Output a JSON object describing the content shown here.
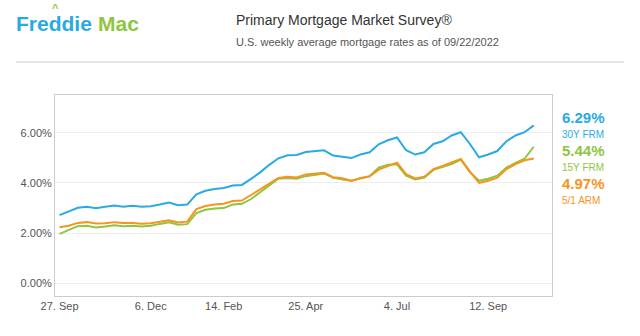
{
  "chart_data": {
    "type": "line",
    "title": "Primary Mortgage Market Survey®",
    "subtitle": "U.S. weekly average mortgage rates as of 09/22/2022",
    "annotations": [
      {
        "text": "Freddie",
        "color": "#29abe2"
      },
      {
        "text": "Mac",
        "color": "#8dc63f"
      },
      {
        "text": "^",
        "color": "#8dc63f"
      }
    ],
    "x": [
      0,
      1,
      2,
      3,
      4,
      5,
      6,
      7,
      8,
      9,
      10,
      11,
      12,
      13,
      14,
      15,
      16,
      17,
      18,
      19,
      20,
      21,
      22,
      23,
      24,
      25,
      26,
      27,
      28,
      29,
      30,
      31,
      32,
      33,
      34,
      35,
      36,
      37,
      38,
      39,
      40,
      41,
      42,
      43,
      44,
      45,
      46,
      47,
      48,
      49,
      50,
      51,
      52
    ],
    "series": [
      {
        "name": "30Y FRM",
        "color": "#29abe2",
        "values": [
          2.72,
          2.88,
          3.01,
          3.05,
          2.99,
          3.05,
          3.1,
          3.05,
          3.09,
          3.05,
          3.07,
          3.14,
          3.22,
          3.11,
          3.14,
          3.55,
          3.69,
          3.76,
          3.8,
          3.9,
          3.92,
          4.16,
          4.42,
          4.72,
          4.98,
          5.1,
          5.11,
          5.23,
          5.27,
          5.3,
          5.09,
          5.05,
          4.99,
          5.13,
          5.22,
          5.54,
          5.7,
          5.81,
          5.3,
          5.13,
          5.22,
          5.55,
          5.66,
          5.89,
          6.02,
          5.55,
          5.02,
          5.13,
          5.27,
          5.66,
          5.89,
          6.02,
          6.29
        ],
        "value_labels": [
          null,
          null,
          null,
          null,
          null,
          null,
          null,
          null,
          null,
          null,
          null,
          null,
          null,
          null,
          null,
          null,
          null,
          null,
          null,
          null,
          null,
          null,
          null,
          null,
          null,
          null,
          null,
          null,
          null,
          null,
          null,
          null,
          null,
          null,
          null,
          null,
          null,
          null,
          null,
          null,
          null,
          null,
          null,
          null,
          null,
          null,
          null,
          null,
          null,
          null,
          null,
          null,
          "6.29%"
        ]
      },
      {
        "name": "15Y FRM",
        "color": "#8dc63f",
        "values": [
          1.97,
          2.12,
          2.28,
          2.3,
          2.23,
          2.27,
          2.32,
          2.28,
          2.3,
          2.27,
          2.3,
          2.37,
          2.43,
          2.34,
          2.36,
          2.8,
          2.93,
          2.98,
          3.0,
          3.14,
          3.17,
          3.36,
          3.63,
          3.91,
          4.17,
          4.2,
          4.17,
          4.27,
          4.33,
          4.38,
          4.2,
          4.15,
          4.08,
          4.2,
          4.27,
          4.61,
          4.72,
          4.74,
          4.29,
          4.14,
          4.21,
          4.52,
          4.62,
          4.75,
          4.93,
          4.43,
          4.09,
          4.17,
          4.29,
          4.61,
          4.8,
          4.97,
          5.44
        ],
        "value_labels": [
          null,
          null,
          null,
          null,
          null,
          null,
          null,
          null,
          null,
          null,
          null,
          null,
          null,
          null,
          null,
          null,
          null,
          null,
          null,
          null,
          null,
          null,
          null,
          null,
          null,
          null,
          null,
          null,
          null,
          null,
          null,
          null,
          null,
          null,
          null,
          null,
          null,
          null,
          null,
          null,
          null,
          null,
          null,
          null,
          null,
          null,
          null,
          null,
          null,
          null,
          null,
          null,
          "5.44%"
        ]
      },
      {
        "name": "5/1 ARM",
        "color": "#f7941d",
        "values": [
          2.24,
          2.3,
          2.41,
          2.44,
          2.39,
          2.4,
          2.44,
          2.41,
          2.41,
          2.38,
          2.4,
          2.47,
          2.51,
          2.43,
          2.46,
          2.96,
          3.08,
          3.14,
          3.17,
          3.28,
          3.3,
          3.52,
          3.74,
          3.98,
          4.2,
          4.25,
          4.22,
          4.34,
          4.36,
          4.4,
          4.23,
          4.19,
          4.09,
          4.17,
          4.26,
          4.53,
          4.68,
          4.81,
          4.35,
          4.18,
          4.25,
          4.55,
          4.68,
          4.81,
          4.95,
          4.45,
          4.0,
          4.09,
          4.21,
          4.55,
          4.75,
          4.9,
          4.97
        ],
        "value_labels": [
          null,
          null,
          null,
          null,
          null,
          null,
          null,
          null,
          null,
          null,
          null,
          null,
          null,
          null,
          null,
          null,
          null,
          null,
          null,
          null,
          null,
          null,
          null,
          null,
          null,
          null,
          null,
          null,
          null,
          null,
          null,
          null,
          null,
          null,
          null,
          null,
          null,
          null,
          null,
          null,
          null,
          null,
          null,
          null,
          null,
          null,
          null,
          null,
          null,
          null,
          null,
          null,
          "4.97%"
        ]
      }
    ],
    "xlim": [
      -0.5,
      54
    ],
    "xticks": [
      {
        "value": 0,
        "label": "27. Sep"
      },
      {
        "value": 10,
        "label": "6. Dec"
      },
      {
        "value": 18,
        "label": "14. Feb"
      },
      {
        "value": 27,
        "label": "25. Apr"
      },
      {
        "value": 37,
        "label": "4. Jul"
      },
      {
        "value": 47,
        "label": "12. Sep"
      }
    ],
    "ylim": [
      -0.5,
      7.5
    ],
    "yticks": [
      {
        "value": 0.0,
        "label": "0.00%"
      },
      {
        "value": 2.0,
        "label": "2.00%"
      },
      {
        "value": 4.0,
        "label": "4.00%"
      },
      {
        "value": 6.0,
        "label": "6.00%"
      }
    ],
    "grid": true
  }
}
